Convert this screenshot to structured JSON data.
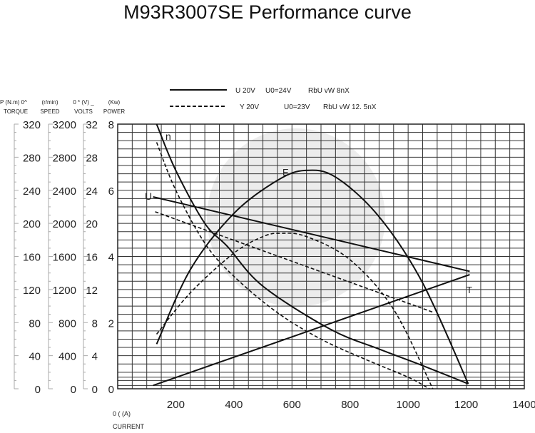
{
  "chart_data": {
    "type": "line",
    "title": "M93R3007SE Performance curve",
    "xlabel": "CURRENT",
    "xunit": "0 ( (A)",
    "xlim": [
      0,
      1400
    ],
    "xticks": [
      200,
      400,
      600,
      800,
      1000,
      1200,
      1400
    ],
    "y_axes": [
      {
        "label": "TORQUE",
        "unit": "P (N.m) 0^",
        "ticks": [
          0,
          40,
          80,
          120,
          160,
          200,
          240,
          280,
          320
        ]
      },
      {
        "label": "SPEED",
        "unit": "(r/min)",
        "ticks": [
          0,
          400,
          800,
          1200,
          1600,
          2000,
          2400,
          2800,
          3200
        ]
      },
      {
        "label": "VOLTS",
        "unit": "0 * (V) _",
        "ticks": [
          0,
          4,
          8,
          12,
          16,
          20,
          24,
          28,
          32
        ]
      },
      {
        "label": "POWER",
        "unit": "(Kw)",
        "ticks": [
          0,
          2,
          4,
          6,
          8
        ]
      }
    ],
    "ylim": [
      0,
      8
    ],
    "legend": [
      {
        "style": "solid",
        "text": "U 20V",
        "u0": "U0=24V",
        "r": "RbU vW 8nX"
      },
      {
        "style": "dashed",
        "text": "Y 20V",
        "u0": "U0=23V",
        "r": "RbU vW 12. 5nX"
      }
    ],
    "curve_labels": {
      "n": "n",
      "U": "U",
      "E": "E",
      "T": "T"
    },
    "series": [
      {
        "name": "n",
        "style": "solid",
        "x": [
          134,
          200,
          300,
          378,
          500,
          732,
          900,
          1050,
          1207
        ],
        "y": [
          8,
          6.6,
          5,
          4.3,
          3.1,
          1.8,
          1.2,
          0.7,
          0.15
        ]
      },
      {
        "name": "U",
        "style": "solid",
        "x": [
          122,
          1212
        ],
        "y": [
          5.8,
          3.55
        ]
      },
      {
        "name": "E",
        "style": "solid",
        "x": [
          134,
          250,
          400,
          550,
          646,
          750,
          900,
          1050,
          1207
        ],
        "y": [
          1.35,
          3.6,
          5.3,
          6.3,
          6.6,
          6.4,
          5.2,
          3.2,
          0.15
        ]
      },
      {
        "name": "T",
        "style": "solid",
        "x": [
          122,
          1212
        ],
        "y": [
          0.1,
          3.45
        ]
      },
      {
        "name": "n",
        "style": "dashed",
        "x": [
          134,
          200,
          300,
          400,
          550,
          700,
          850,
          1000,
          1073
        ],
        "y": [
          7.45,
          6,
          4.4,
          3.4,
          2.3,
          1.5,
          0.9,
          0.35,
          0
        ]
      },
      {
        "name": "U",
        "style": "dashed",
        "x": [
          129,
          1090
        ],
        "y": [
          5.35,
          2.3
        ]
      },
      {
        "name": "E",
        "style": "dashed",
        "x": [
          134,
          250,
          400,
          500,
          561,
          650,
          800,
          950,
          1085
        ],
        "y": [
          1.65,
          2.9,
          4.1,
          4.6,
          4.7,
          4.6,
          3.9,
          2.4,
          0
        ]
      }
    ]
  }
}
